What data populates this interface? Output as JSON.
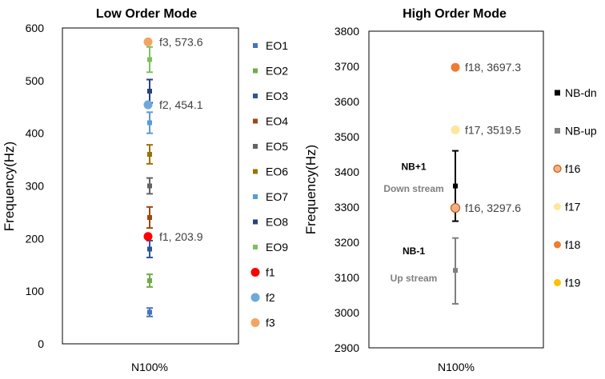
{
  "chart_data": [
    {
      "type": "scatter",
      "title": "Low Order Mode",
      "xlabel": "N100%",
      "ylabel": "Frequency(Hz)",
      "ylim": [
        0,
        600
      ],
      "yticks": [
        "0",
        "100",
        "200",
        "300",
        "400",
        "500",
        "600"
      ],
      "x_category": "N100%",
      "errorbars": [
        {
          "name": "EO1",
          "color": "#4472C4",
          "y": 60,
          "ylo": 52,
          "yhi": 68
        },
        {
          "name": "EO2",
          "color": "#70AD47",
          "y": 120,
          "ylo": 108,
          "yhi": 132
        },
        {
          "name": "EO3",
          "color": "#2F5597",
          "y": 180,
          "ylo": 164,
          "yhi": 196
        },
        {
          "name": "EO4",
          "color": "#9E480E",
          "y": 240,
          "ylo": 220,
          "yhi": 260
        },
        {
          "name": "EO5",
          "color": "#636363",
          "y": 300,
          "ylo": 285,
          "yhi": 315
        },
        {
          "name": "EO6",
          "color": "#997300",
          "y": 360,
          "ylo": 342,
          "yhi": 378
        },
        {
          "name": "EO7",
          "color": "#5B9BD5",
          "y": 420,
          "ylo": 400,
          "yhi": 440
        },
        {
          "name": "EO8",
          "color": "#264478",
          "y": 480,
          "ylo": 458,
          "yhi": 502
        },
        {
          "name": "EO9",
          "color": "#7CC160",
          "y": 540,
          "ylo": 516,
          "yhi": 564
        }
      ],
      "points": [
        {
          "name": "f1",
          "color": "#FF0000",
          "y": 203.9,
          "label": "f1, 203.9"
        },
        {
          "name": "f2",
          "color": "#6FA8DC",
          "y": 454.1,
          "label": "f2, 454.1"
        },
        {
          "name": "f3",
          "color": "#F4A460",
          "y": 573.6,
          "label": "f3, 573.6"
        }
      ],
      "legend": [
        "EO1",
        "EO2",
        "EO3",
        "EO4",
        "EO5",
        "EO6",
        "EO7",
        "EO8",
        "EO9",
        "f1",
        "f2",
        "f3"
      ]
    },
    {
      "type": "scatter",
      "title": "High Order Mode",
      "xlabel": "N100%",
      "ylabel": "Frequency(Hz)",
      "ylim": [
        2900,
        3800
      ],
      "yticks": [
        "2900",
        "3000",
        "3100",
        "3200",
        "3300",
        "3400",
        "3500",
        "3600",
        "3700",
        "3800"
      ],
      "x_category": "N100%",
      "errorbars": [
        {
          "name": "NB-dn",
          "color": "#000000",
          "y": 3360,
          "ylo": 3260,
          "yhi": 3460
        },
        {
          "name": "NB-up",
          "color": "#808080",
          "y": 3120,
          "ylo": 3025,
          "yhi": 3212
        }
      ],
      "points": [
        {
          "name": "f16",
          "color": "#F4B183",
          "edge": "#C55A11",
          "y": 3297.6,
          "label": "f16, 3297.6"
        },
        {
          "name": "f17",
          "color": "#FFE699",
          "y": 3519.5,
          "label": "f17, 3519.5"
        },
        {
          "name": "f18",
          "color": "#ED7D31",
          "y": 3697.3,
          "label": "f18, 3697.3"
        }
      ],
      "annotations": [
        {
          "text": "NB+1",
          "style": "bold",
          "y": 3415
        },
        {
          "text": "Down stream",
          "style": "gray",
          "y": 3352
        },
        {
          "text": "NB-1",
          "style": "bold",
          "y": 3175
        },
        {
          "text": "Up stream",
          "style": "gray",
          "y": 3098
        }
      ],
      "legend": [
        {
          "name": "NB-dn",
          "color": "#000000",
          "marker": "square"
        },
        {
          "name": "NB-up",
          "color": "#808080",
          "marker": "square"
        },
        {
          "name": "f16",
          "color": "#F4B183",
          "edge": "#C55A11",
          "marker": "circle"
        },
        {
          "name": "f17",
          "color": "#FFE699",
          "marker": "circle"
        },
        {
          "name": "f18",
          "color": "#ED7D31",
          "marker": "circle"
        },
        {
          "name": "f19",
          "color": "#FFC000",
          "marker": "circle"
        }
      ]
    }
  ]
}
